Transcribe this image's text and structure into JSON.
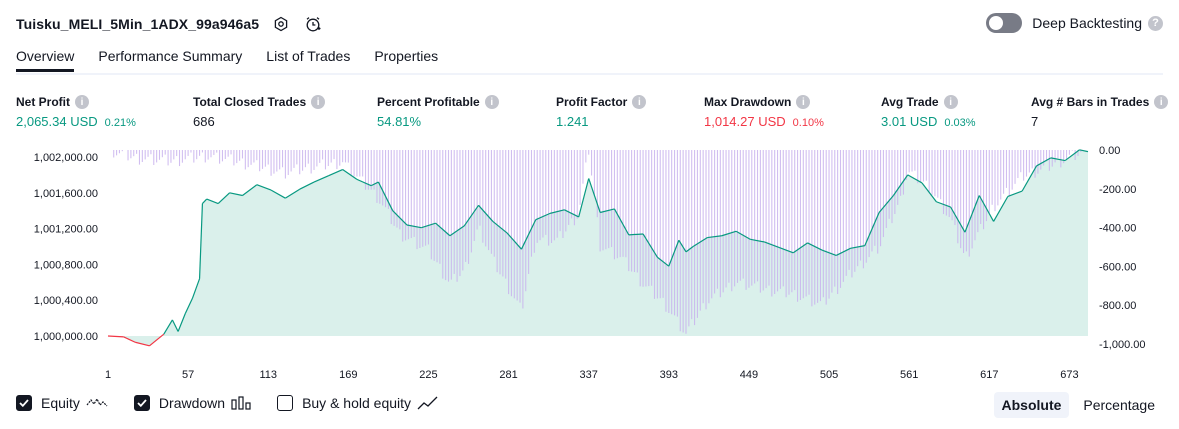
{
  "header": {
    "strategy_name": "Tuisku_MELI_5Min_1ADX_99a946a5",
    "deep_backtesting_label": "Deep Backtesting",
    "help_glyph": "?"
  },
  "tabs": [
    {
      "label": "Overview",
      "active": true
    },
    {
      "label": "Performance Summary",
      "active": false
    },
    {
      "label": "List of Trades",
      "active": false
    },
    {
      "label": "Properties",
      "active": false
    }
  ],
  "metrics": [
    {
      "label": "Net Profit",
      "value": "2,065.34 USD",
      "pct": "0.21%",
      "tone": "pos"
    },
    {
      "label": "Total Closed Trades",
      "value": "686",
      "pct": "",
      "tone": "neu"
    },
    {
      "label": "Percent Profitable",
      "value": "54.81%",
      "pct": "",
      "tone": "pos"
    },
    {
      "label": "Profit Factor",
      "value": "1.241",
      "pct": "",
      "tone": "pos"
    },
    {
      "label": "Max Drawdown",
      "value": "1,014.27 USD",
      "pct": "0.10%",
      "tone": "neg"
    },
    {
      "label": "Avg Trade",
      "value": "3.01 USD",
      "pct": "0.03%",
      "tone": "pos"
    },
    {
      "label": "Avg # Bars in Trades",
      "value": "7",
      "pct": "",
      "tone": "neu"
    }
  ],
  "info_glyph": "i",
  "legend": {
    "equity_label": "Equity",
    "drawdown_label": "Drawdown",
    "buyhold_label": "Buy & hold equity",
    "equity_checked": true,
    "drawdown_checked": true,
    "buyhold_checked": false
  },
  "modes": {
    "absolute_label": "Absolute",
    "percentage_label": "Percentage",
    "active": "Absolute"
  },
  "colors": {
    "equity_up": "#089981",
    "equity_down": "#f23645",
    "equity_fill": "#cdebe4",
    "drawdown": "#c9b3ee",
    "text": "#131722"
  },
  "chart_data": {
    "type": "line",
    "title": "",
    "x_ticks": [
      1,
      57,
      113,
      169,
      225,
      281,
      337,
      393,
      449,
      505,
      561,
      617,
      673
    ],
    "x_range": [
      1,
      686
    ],
    "left_axis": {
      "label": "Equity",
      "ticks": [
        "1,000,000.00",
        "1,000,400.00",
        "1,000,800.00",
        "1,001,200.00",
        "1,001,600.00",
        "1,002,000.00"
      ],
      "range": [
        999870,
        1002080
      ]
    },
    "right_axis": {
      "label": "Drawdown",
      "ticks": [
        "0.00",
        "-200.00",
        "-400.00",
        "-600.00",
        "-800.00",
        "-1,000.00"
      ],
      "range": [
        -1014.27,
        0
      ]
    },
    "series": [
      {
        "name": "Equity",
        "x": [
          1,
          12,
          20,
          30,
          40,
          46,
          50,
          55,
          60,
          65,
          67,
          70,
          78,
          86,
          95,
          105,
          115,
          125,
          135,
          145,
          155,
          165,
          175,
          185,
          190,
          200,
          210,
          220,
          230,
          240,
          250,
          260,
          270,
          280,
          290,
          300,
          310,
          320,
          330,
          337,
          345,
          355,
          365,
          375,
          385,
          393,
          400,
          405,
          410,
          420,
          430,
          440,
          450,
          460,
          470,
          480,
          490,
          500,
          510,
          520,
          530,
          540,
          550,
          560,
          570,
          580,
          590,
          600,
          610,
          620,
          630,
          640,
          650,
          660,
          670,
          680,
          686
        ],
        "values": [
          1000000,
          999990,
          999930,
          999890,
          1000020,
          1000180,
          1000050,
          1000250,
          1000420,
          1000640,
          1001480,
          1001530,
          1001480,
          1001600,
          1001570,
          1001690,
          1001630,
          1001540,
          1001640,
          1001720,
          1001790,
          1001860,
          1001750,
          1001680,
          1001720,
          1001400,
          1001240,
          1001210,
          1001260,
          1001120,
          1001230,
          1001460,
          1001280,
          1001150,
          1000970,
          1001300,
          1001370,
          1001410,
          1001330,
          1001760,
          1001380,
          1001420,
          1001130,
          1001140,
          1000880,
          1000780,
          1001070,
          1000940,
          1001000,
          1001100,
          1001120,
          1001170,
          1001080,
          1001050,
          1000990,
          1000930,
          1001040,
          1000960,
          1000900,
          1000980,
          1001010,
          1001380,
          1001570,
          1001800,
          1001710,
          1001500,
          1001440,
          1001160,
          1001570,
          1001280,
          1001560,
          1001620,
          1001900,
          1001990,
          1001960,
          1002080,
          1002060
        ]
      },
      {
        "name": "Drawdown",
        "x": [
          1,
          20,
          45,
          70,
          90,
          110,
          125,
          150,
          165,
          175,
          190,
          205,
          225,
          240,
          250,
          260,
          270,
          280,
          290,
          300,
          315,
          330,
          337,
          345,
          360,
          375,
          390,
          405,
          420,
          440,
          460,
          480,
          500,
          520,
          540,
          555,
          560,
          575,
          590,
          600,
          620,
          640,
          660,
          675,
          686
        ],
        "values": [
          0,
          -40,
          -60,
          -30,
          -60,
          -90,
          -120,
          -80,
          -60,
          -140,
          -250,
          -430,
          -520,
          -690,
          -620,
          -400,
          -570,
          -700,
          -830,
          -460,
          -470,
          -330,
          0,
          -490,
          -560,
          -690,
          -790,
          -950,
          -780,
          -680,
          -720,
          -740,
          -800,
          -640,
          -500,
          -260,
          -110,
          -190,
          -360,
          -560,
          -290,
          -140,
          -80,
          -30,
          0
        ]
      }
    ]
  }
}
